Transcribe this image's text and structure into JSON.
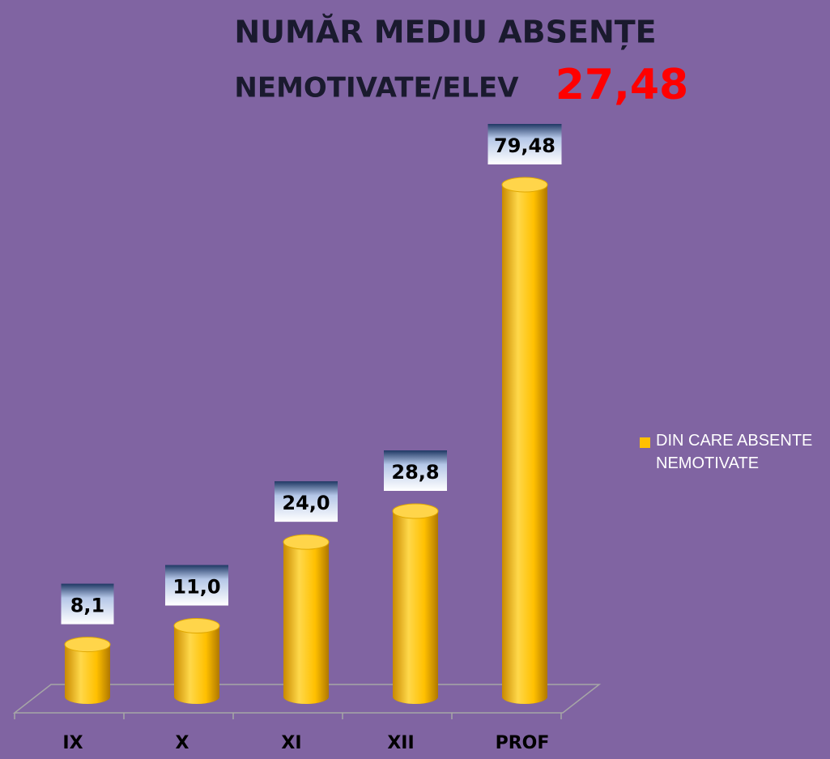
{
  "chart_data": {
    "type": "bar",
    "title": [
      "NUMĂR MEDIU ABSENȚE",
      "NEMOTIVATE/ELEV"
    ],
    "annotation": "27,48",
    "categories": [
      "IX",
      "X",
      "XI",
      "XII",
      "PROF"
    ],
    "series": [
      {
        "name": "DIN CARE ABSENTE NEMOTIVATE",
        "color": "#ffc000",
        "values": [
          8.1,
          11.0,
          24.0,
          28.8,
          79.48
        ],
        "value_labels": [
          "8,1",
          "11,0",
          "24,0",
          "28,8",
          "79,48"
        ]
      }
    ],
    "legend": "right"
  }
}
